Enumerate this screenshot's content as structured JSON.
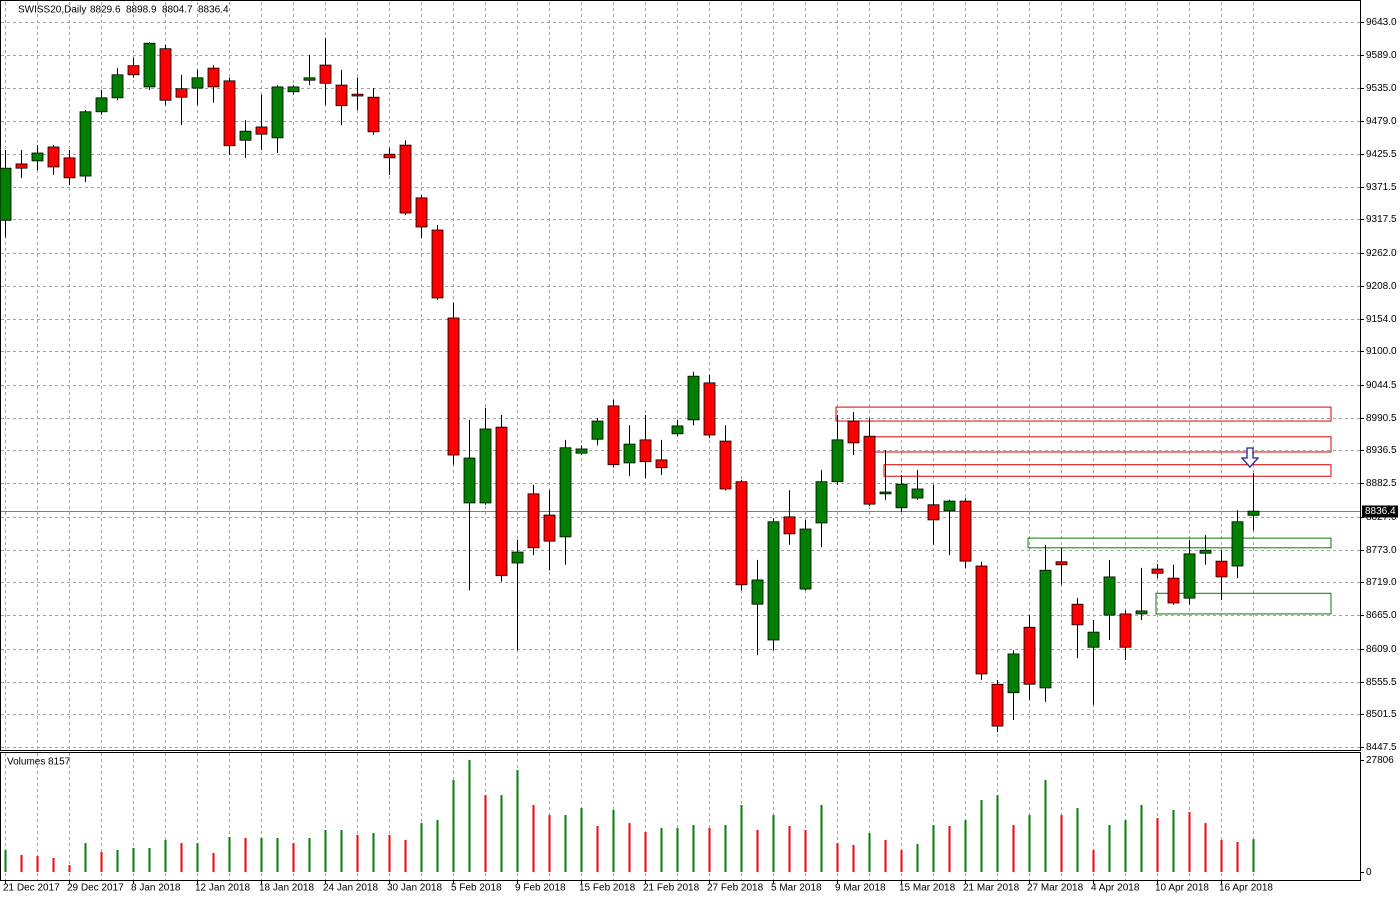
{
  "chart_data": {
    "type": "candlestick",
    "title": "SWISS20,Daily",
    "volume_title": "Volumes",
    "up_color": "#008000",
    "down_color": "#ff0000",
    "grid": true,
    "categories": [
      "21 Dec 2017",
      null,
      null,
      null,
      "29 Dec 2017",
      null,
      null,
      null,
      "8 Jan 2018",
      null,
      null,
      null,
      "12 Jan 2018",
      null,
      null,
      null,
      "18 Jan 2018",
      null,
      null,
      null,
      "24 Jan 2018",
      null,
      null,
      null,
      "30 Jan 2018",
      null,
      null,
      null,
      "5 Feb 2018",
      null,
      null,
      null,
      "9 Feb 2018",
      null,
      null,
      null,
      "15 Feb 2018",
      null,
      null,
      null,
      "21 Feb 2018",
      null,
      null,
      null,
      "27 Feb 2018",
      null,
      null,
      null,
      "5 Mar 2018",
      null,
      null,
      null,
      "9 Mar 2018",
      null,
      null,
      null,
      "15 Mar 2018",
      null,
      null,
      null,
      "21 Mar 2018",
      null,
      null,
      null,
      "27 Mar 2018",
      null,
      null,
      null,
      "4 Apr 2018",
      null,
      null,
      null,
      "10 Apr 2018",
      null,
      null,
      null,
      "16 Apr 2018",
      null,
      null
    ],
    "open": [
      9316,
      9409,
      9414,
      9437,
      9419,
      9389,
      9495,
      9518,
      9571,
      9536,
      9599,
      9533,
      9534,
      9567,
      9546,
      9448,
      9470,
      9452,
      9528,
      9547,
      9572,
      9539,
      9524,
      9519,
      9425,
      9440,
      9353,
      9300,
      9155,
      8850,
      8850,
      8975,
      8751,
      8865,
      8830,
      8794,
      8932,
      8955,
      9010,
      8916,
      8954,
      8921,
      8964,
      8987,
      9048,
      8952,
      8885,
      8683,
      8624,
      8827,
      8708,
      8817,
      8885,
      8985,
      8960,
      8865,
      8842,
      8858,
      8847,
      8837,
      8853,
      8746,
      8551,
      8537,
      8645,
      8545,
      8753,
      8683,
      8612,
      8665,
      8667,
      8667,
      8741,
      8726,
      8693,
      8767,
      8754,
      8746,
      8829.6
    ],
    "high": [
      9432,
      9432,
      9440,
      9440,
      9432,
      9498,
      9531,
      9567,
      9584,
      9610,
      9605,
      9556,
      9564,
      9572,
      9551,
      9481,
      9523,
      9539,
      9539,
      9589,
      9617,
      9564,
      9551,
      9534,
      9435,
      9448,
      9358,
      9308,
      9180,
      8987,
      9007,
      8995,
      8789,
      8880,
      8871,
      8954,
      8945,
      8990,
      9020,
      8978,
      8995,
      8954,
      8987,
      9066,
      9061,
      8978,
      8888,
      8756,
      8825,
      8871,
      8822,
      8904,
      8995,
      9000,
      8990,
      8937,
      8896,
      8904,
      8880,
      8855,
      8858,
      8753,
      8558,
      8607,
      8665,
      8781,
      8776,
      8693,
      8657,
      8756,
      8673,
      8743,
      8749,
      8748,
      8789,
      8797,
      8772,
      8838,
      8898.9
    ],
    "low": [
      9288,
      9386,
      9399,
      9391,
      9374,
      9379,
      9490,
      9514,
      9551,
      9531,
      9506,
      9473,
      9506,
      9510,
      9424,
      9419,
      9432,
      9427,
      9523,
      9539,
      9506,
      9473,
      9498,
      9457,
      9391,
      9325,
      9287,
      9185,
      8913,
      8706,
      8847,
      8720,
      8607,
      8764,
      8739,
      8748,
      8929,
      8945,
      8908,
      8894,
      8891,
      8896,
      8960,
      8978,
      8957,
      8871,
      8706,
      8599,
      8607,
      8781,
      8706,
      8777,
      8880,
      8929,
      8845,
      8855,
      8835,
      8855,
      8781,
      8764,
      8743,
      8558,
      8472,
      8492,
      8525,
      8522,
      8715,
      8594,
      8517,
      8624,
      8591,
      8657,
      8726,
      8682,
      8682,
      8748,
      8690,
      8726,
      8804.7
    ],
    "close": [
      9402,
      9402,
      9427,
      9404,
      9386,
      9495,
      9518,
      9556,
      9556,
      9608,
      9514,
      9519,
      9551,
      9536,
      9439,
      9463,
      9458,
      9536,
      9536,
      9551,
      9542,
      9505,
      9521,
      9462,
      9419,
      9328,
      9305,
      9188,
      8929,
      8924,
      8972,
      8730,
      8769,
      8776,
      8787,
      8941,
      8939,
      8985,
      8913,
      8947,
      8918,
      8908,
      8977,
      9059,
      8962,
      8873,
      8715,
      8723,
      8819,
      8799,
      8807,
      8885,
      8954,
      8949,
      8848,
      8868,
      8881,
      8873,
      8822,
      8853,
      8754,
      8568,
      8482,
      8601,
      8551,
      8739,
      8748,
      8649,
      8637,
      8728,
      8612,
      8672,
      8734,
      8685,
      8766,
      8772,
      8728,
      8819,
      8836.4
    ],
    "volumes": [
      5460,
      4220,
      3970,
      3470,
      1740,
      7190,
      4960,
      5460,
      5950,
      5950,
      7940,
      7190,
      7190,
      4710,
      8680,
      8430,
      8430,
      8430,
      7190,
      8430,
      10420,
      10420,
      9180,
      9670,
      9180,
      7940,
      12150,
      12900,
      22820,
      27806,
      19100,
      19100,
      25300,
      16620,
      14140,
      14140,
      15870,
      11410,
      15380,
      12150,
      9920,
      10910,
      10910,
      11660,
      10910,
      11660,
      16620,
      10420,
      14140,
      11410,
      10420,
      16620,
      7190,
      6700,
      9670,
      7940,
      5460,
      6940,
      11660,
      11410,
      12900,
      17860,
      19100,
      11660,
      14140,
      22820,
      14140,
      15870,
      5460,
      11660,
      12900,
      16620,
      13390,
      15380,
      14880,
      12150,
      7940,
      7440,
      8157
    ],
    "ylim": [
      8442.6,
      9676.0
    ],
    "yticks": [
      {
        "value": 9643,
        "label": "9643.0"
      },
      {
        "value": 9589,
        "label": "9589.0"
      },
      {
        "value": 9535,
        "label": "9535.0"
      },
      {
        "value": 9479,
        "label": "9479.0"
      },
      {
        "value": 9425.5,
        "label": "9425.5"
      },
      {
        "value": 9371.5,
        "label": "9371.5"
      },
      {
        "value": 9317.5,
        "label": "9317.5"
      },
      {
        "value": 9262,
        "label": "9262.0"
      },
      {
        "value": 9208,
        "label": "9208.0"
      },
      {
        "value": 9154,
        "label": "9154.0"
      },
      {
        "value": 9100,
        "label": "9100.0"
      },
      {
        "value": 9044.5,
        "label": "9044.5"
      },
      {
        "value": 8990.5,
        "label": "8990.5"
      },
      {
        "value": 8936.5,
        "label": "8936.5"
      },
      {
        "value": 8882.5,
        "label": "8882.5"
      },
      {
        "value": 8827,
        "label": "8827.0"
      },
      {
        "value": 8773,
        "label": "8773.0"
      },
      {
        "value": 8719,
        "label": "8719.0"
      },
      {
        "value": 8665,
        "label": "8665.0"
      },
      {
        "value": 8609,
        "label": "8609.0"
      },
      {
        "value": 8555.5,
        "label": "8555.5"
      },
      {
        "value": 8501.5,
        "label": "8501.5"
      },
      {
        "value": 8447.5,
        "label": "8447.5"
      }
    ],
    "vlim": [
      0,
      27806
    ],
    "vticks": [
      0,
      27806
    ],
    "zones": [
      {
        "color": "#e00000",
        "top": 9008,
        "bottom": 8985
      },
      {
        "color": "#e00000",
        "top": 8959,
        "bottom": 8934
      },
      {
        "color": "#e00000",
        "top": 8913,
        "bottom": 8894
      },
      {
        "color": "#008000",
        "top": 8792,
        "bottom": 8776
      },
      {
        "color": "#008000",
        "top": 8701,
        "bottom": 8667
      }
    ]
  }
}
